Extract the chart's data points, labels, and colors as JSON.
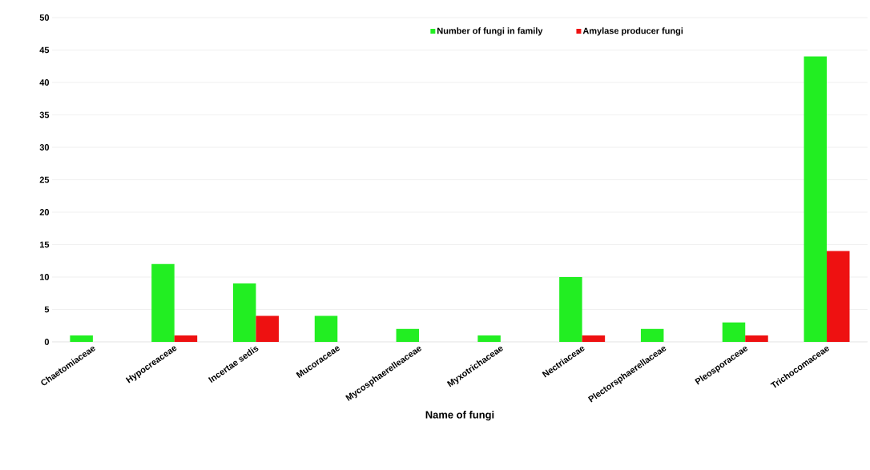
{
  "chart_data": {
    "type": "bar",
    "xlabel": "Name of fungi",
    "categories": [
      "Chaetomiaceae",
      "Hypocreaceae",
      "Incertae sedis",
      "Mucoraceae",
      "Mycosphaerelleaceae",
      "Myxotrichaceae",
      "Nectriaceae",
      "Plectorsphaerellaceae",
      "Pleosporaceae",
      "Trichocomaceae"
    ],
    "series": [
      {
        "name": "Number of fungi in family",
        "color": "#22ee22",
        "values": [
          1,
          12,
          9,
          4,
          2,
          1,
          10,
          2,
          3,
          44
        ]
      },
      {
        "name": "Amylase producer fungi",
        "color": "#ee1111",
        "values": [
          null,
          1,
          4,
          null,
          null,
          null,
          1,
          null,
          1,
          14
        ]
      }
    ],
    "ylim": [
      0,
      50
    ],
    "yticks": [
      0,
      5,
      10,
      15,
      20,
      25,
      30,
      35,
      40,
      45,
      50
    ],
    "grid": "y",
    "legend": "top"
  }
}
